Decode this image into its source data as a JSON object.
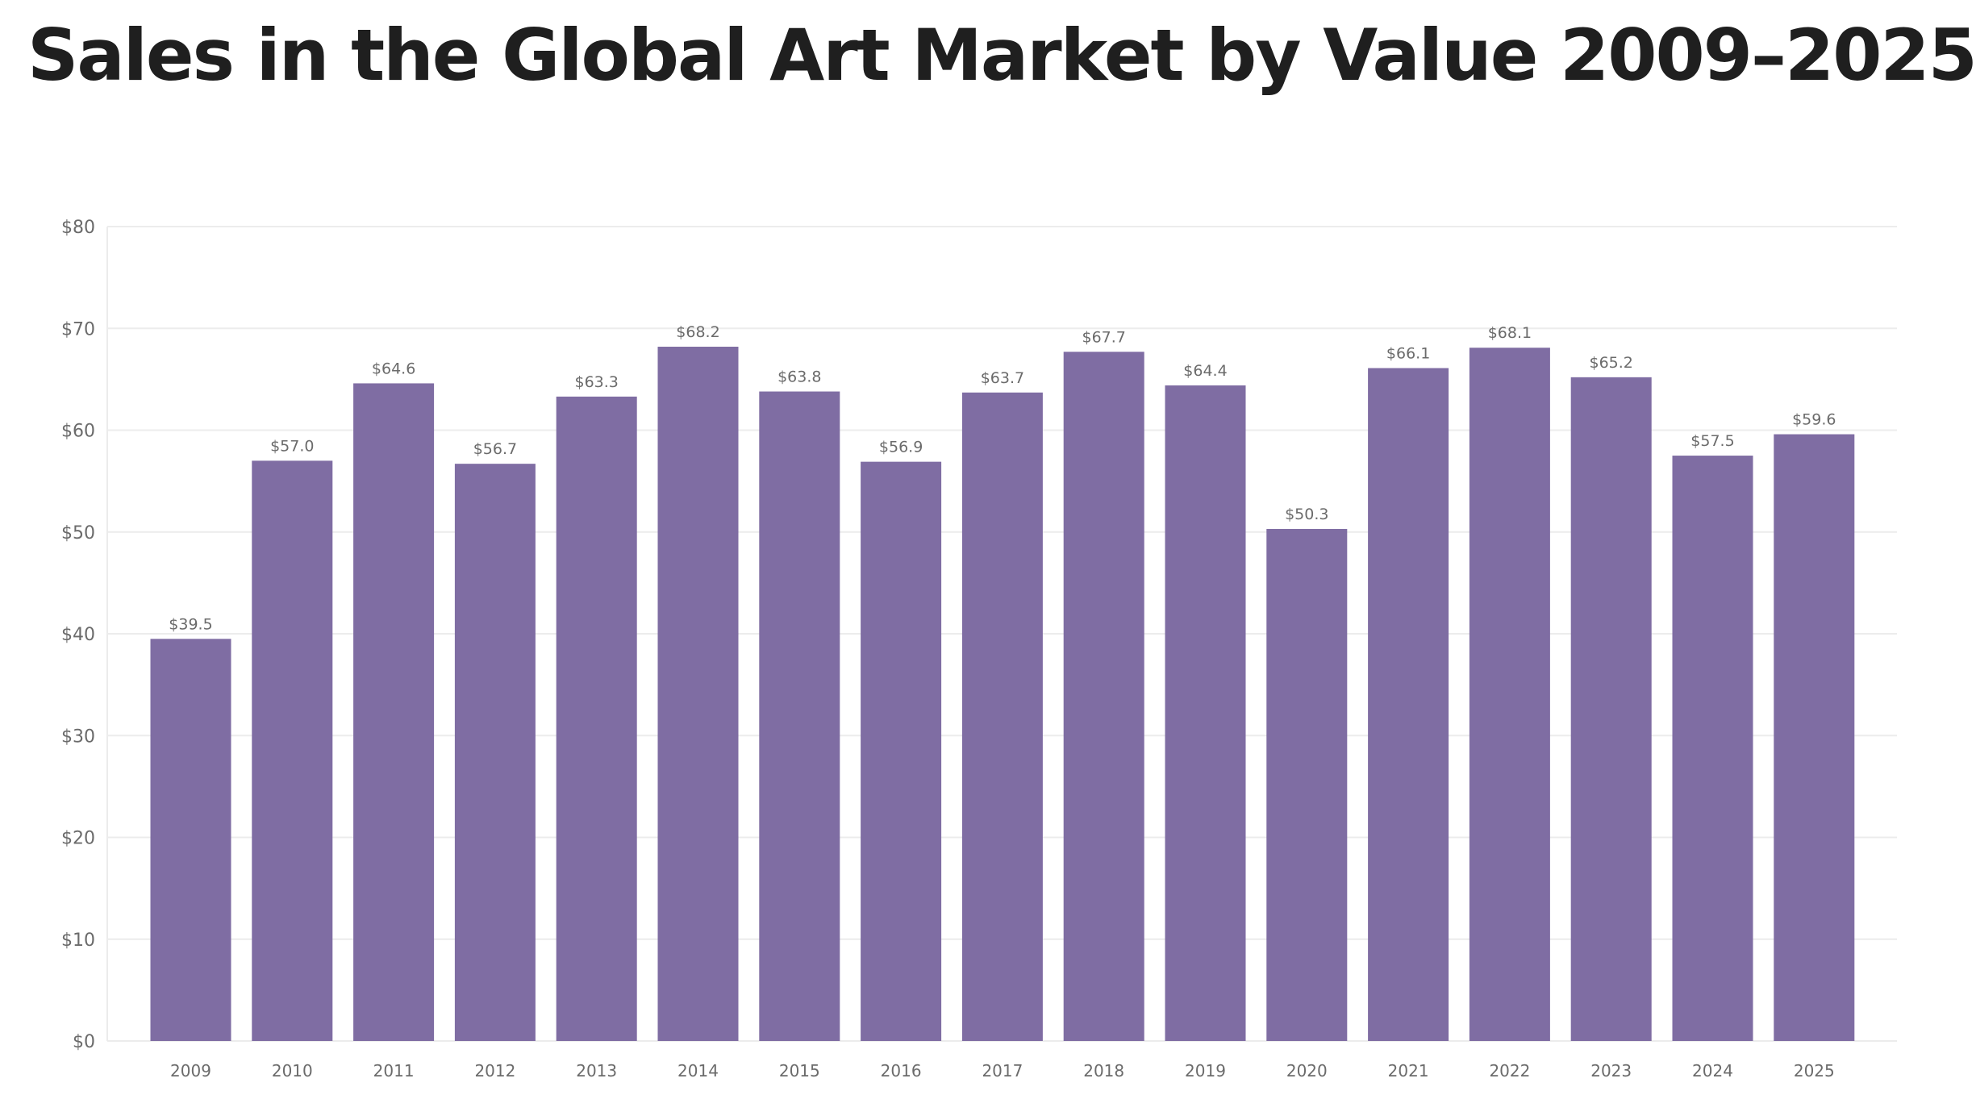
{
  "page": {
    "title": "Sales in the Global Art Market by Value 2009–2025"
  },
  "colors": {
    "bar": "#7f6da3",
    "grid": "#ececec",
    "axis_text": "#6b6b6b",
    "value_text": "#6b6b6b"
  },
  "chart_data": {
    "type": "bar",
    "title": "Sales in the Global Art Market by Value 2009–2025",
    "xlabel": "",
    "ylabel": "",
    "ylim": [
      0,
      80
    ],
    "grid": true,
    "legend": "none",
    "y_ticks": [
      0,
      10,
      20,
      30,
      40,
      50,
      60,
      70,
      80
    ],
    "y_tick_labels": [
      "$0",
      "$10",
      "$20",
      "$30",
      "$40",
      "$50",
      "$60",
      "$70",
      "$80"
    ],
    "categories": [
      "2009",
      "2010",
      "2011",
      "2012",
      "2013",
      "2014",
      "2015",
      "2016",
      "2017",
      "2018",
      "2019",
      "2020",
      "2021",
      "2022",
      "2023",
      "2024",
      "2025"
    ],
    "values": [
      39.5,
      57.0,
      64.6,
      56.7,
      63.3,
      68.2,
      63.8,
      56.9,
      63.7,
      67.7,
      64.4,
      50.3,
      66.1,
      68.1,
      65.2,
      57.5,
      59.6
    ],
    "value_labels": [
      "$39.5",
      "$57.0",
      "$64.6",
      "$56.7",
      "$63.3",
      "$68.2",
      "$63.8",
      "$56.9",
      "$63.7",
      "$67.7",
      "$64.4",
      "$50.3",
      "$66.1",
      "$68.1",
      "$65.2",
      "$57.5",
      "$59.6"
    ]
  }
}
